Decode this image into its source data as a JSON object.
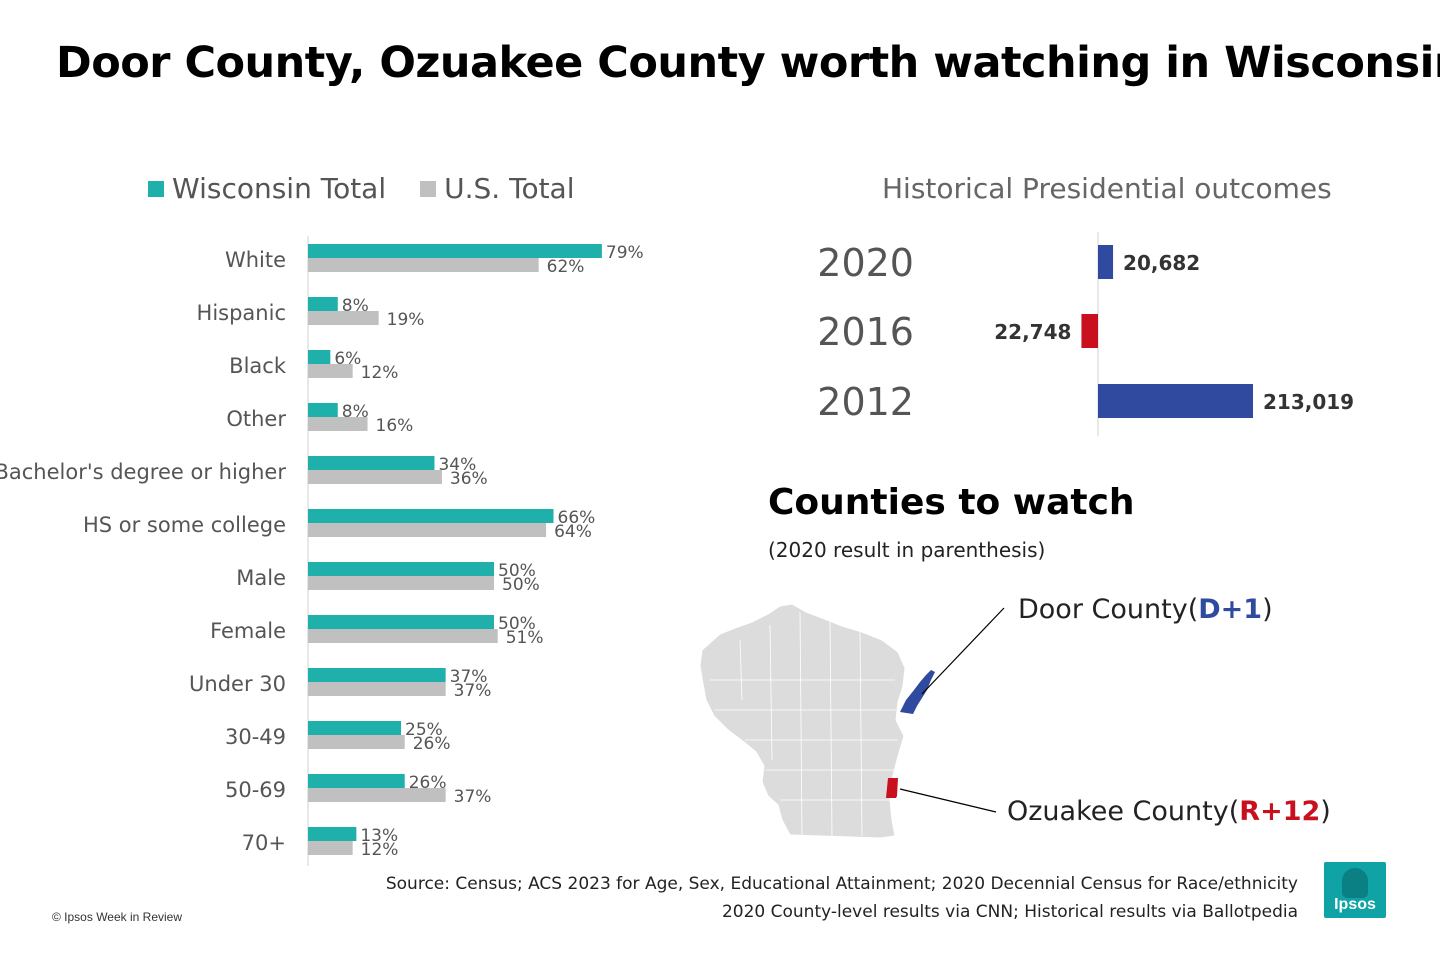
{
  "title": "Door County, Ozuakee County worth watching in Wisconsin",
  "legend": {
    "wisconsin": "Wisconsin Total",
    "us": "U.S. Total"
  },
  "colors": {
    "wisconsin": "#1fb0ab",
    "us": "#c0c0c0",
    "dem": "#2f4a9e",
    "rep": "#c8101e",
    "map": "#dcdcdc"
  },
  "chart_data": [
    {
      "type": "bar",
      "orientation": "horizontal",
      "categories": [
        "White",
        "Hispanic",
        "Black",
        "Other",
        "Bachelor's degree or higher",
        "HS or some college",
        "Male",
        "Female",
        "Under 30",
        "30-49",
        "50-69",
        "70+"
      ],
      "series": [
        {
          "name": "Wisconsin Total",
          "values": [
            79,
            8,
            6,
            8,
            34,
            66,
            50,
            50,
            37,
            25,
            26,
            13
          ],
          "labels": [
            "79%",
            "8%",
            "6%",
            "8%",
            "34%",
            "66%",
            "50%",
            "50%",
            "37%",
            "25%",
            "26%",
            "13%"
          ]
        },
        {
          "name": "U.S. Total",
          "values": [
            62,
            19,
            12,
            16,
            36,
            64,
            50,
            51,
            37,
            26,
            37,
            12
          ],
          "labels": [
            "62%",
            "19%",
            "12%",
            "16%",
            "36%",
            "64%",
            "50%",
            "51%",
            "37%",
            "26%",
            "37%",
            "12%"
          ]
        }
      ],
      "xlim": [
        0,
        100
      ],
      "legend_position": "top"
    },
    {
      "type": "bar",
      "orientation": "horizontal",
      "title": "Historical Presidential outcomes",
      "categories": [
        "2020",
        "2016",
        "2012"
      ],
      "values": [
        20682,
        -22748,
        213019
      ],
      "labels": [
        "20,682",
        "22,748",
        "213,019"
      ],
      "party": [
        "D",
        "R",
        "D"
      ]
    }
  ],
  "map": {
    "title": "Counties to watch",
    "subtitle": "(2020 result in parenthesis)",
    "door": {
      "name": "Door County",
      "margin": "D+1"
    },
    "ozaukee": {
      "name": "Ozuakee County",
      "margin": "R+12"
    }
  },
  "source": {
    "line1": "Source: Census; ACS 2023 for Age, Sex, Educational Attainment; 2020 Decennial Census for Race/ethnicity",
    "line2": "2020 County-level results via CNN; Historical results via Ballotpedia"
  },
  "copyright": "© Ipsos Week in Review",
  "logo_text": "Ipsos"
}
